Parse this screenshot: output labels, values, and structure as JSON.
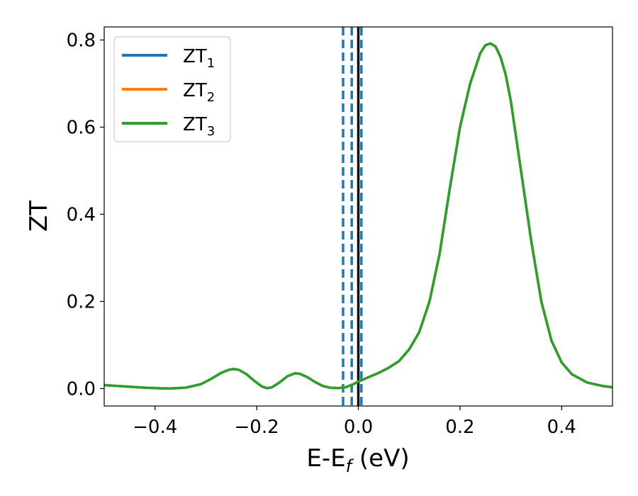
{
  "chart_data": {
    "type": "line",
    "xlabel_main": "E-E",
    "xlabel_sub": "f",
    "xlabel_unit": " (eV)",
    "ylabel": "ZT",
    "xlim": [
      -0.5,
      0.5
    ],
    "ylim": [
      -0.04,
      0.83
    ],
    "x_ticks": [
      -0.4,
      -0.2,
      0.0,
      0.2,
      0.4
    ],
    "x_tick_labels": [
      "−0.4",
      "−0.2",
      "0.0",
      "0.2",
      "0.4"
    ],
    "y_ticks": [
      0.0,
      0.2,
      0.4,
      0.6,
      0.8
    ],
    "y_tick_labels": [
      "0.0",
      "0.2",
      "0.4",
      "0.6",
      "0.8"
    ],
    "grid": false,
    "legend_placement": "top-left",
    "vlines": [
      {
        "x": -0.03,
        "style": "dashed",
        "color": "#1f77b4"
      },
      {
        "x": -0.013,
        "style": "dashed",
        "color": "#1f77b4"
      },
      {
        "x": 0.006,
        "style": "dashed",
        "color": "#1f77b4"
      },
      {
        "x": 0.0,
        "style": "solid",
        "color": "#000000"
      }
    ],
    "series": [
      {
        "name": "ZT",
        "sub": "1",
        "color": "#1f77b4",
        "x": [
          -0.5,
          -0.46,
          -0.42,
          -0.39,
          -0.37,
          -0.34,
          -0.31,
          -0.29,
          -0.27,
          -0.255,
          -0.245,
          -0.235,
          -0.22,
          -0.205,
          -0.19,
          -0.18,
          -0.17,
          -0.155,
          -0.14,
          -0.125,
          -0.115,
          -0.1,
          -0.085,
          -0.07,
          -0.055,
          -0.04,
          -0.025,
          -0.01,
          0.0,
          0.02,
          0.04,
          0.06,
          0.08,
          0.1,
          0.12,
          0.14,
          0.16,
          0.18,
          0.2,
          0.22,
          0.24,
          0.25,
          0.26,
          0.27,
          0.28,
          0.29,
          0.3,
          0.32,
          0.34,
          0.36,
          0.38,
          0.4,
          0.42,
          0.45,
          0.48,
          0.5
        ],
        "y": [
          0.008,
          0.005,
          0.002,
          0.0006,
          0.0003,
          0.002,
          0.01,
          0.022,
          0.036,
          0.043,
          0.045,
          0.043,
          0.033,
          0.018,
          0.005,
          0.0008,
          0.003,
          0.014,
          0.028,
          0.035,
          0.034,
          0.026,
          0.015,
          0.006,
          0.0018,
          0.001,
          0.003,
          0.01,
          0.016,
          0.026,
          0.036,
          0.048,
          0.063,
          0.09,
          0.13,
          0.2,
          0.31,
          0.46,
          0.6,
          0.7,
          0.77,
          0.788,
          0.792,
          0.785,
          0.76,
          0.72,
          0.66,
          0.5,
          0.34,
          0.2,
          0.11,
          0.06,
          0.033,
          0.014,
          0.006,
          0.003
        ]
      },
      {
        "name": "ZT",
        "sub": "2",
        "color": "#ff7f0e",
        "x": [
          -0.5,
          -0.46,
          -0.42,
          -0.39,
          -0.37,
          -0.34,
          -0.31,
          -0.29,
          -0.27,
          -0.255,
          -0.245,
          -0.235,
          -0.22,
          -0.205,
          -0.19,
          -0.18,
          -0.17,
          -0.155,
          -0.14,
          -0.125,
          -0.115,
          -0.1,
          -0.085,
          -0.07,
          -0.055,
          -0.04,
          -0.025,
          -0.01,
          0.0,
          0.02,
          0.04,
          0.06,
          0.08,
          0.1,
          0.12,
          0.14,
          0.16,
          0.18,
          0.2,
          0.22,
          0.24,
          0.25,
          0.26,
          0.27,
          0.28,
          0.29,
          0.3,
          0.32,
          0.34,
          0.36,
          0.38,
          0.4,
          0.42,
          0.45,
          0.48,
          0.5
        ],
        "y": [
          0.008,
          0.005,
          0.002,
          0.0006,
          0.0003,
          0.002,
          0.01,
          0.022,
          0.036,
          0.043,
          0.045,
          0.043,
          0.033,
          0.018,
          0.005,
          0.0008,
          0.003,
          0.014,
          0.028,
          0.035,
          0.034,
          0.026,
          0.015,
          0.006,
          0.0018,
          0.001,
          0.003,
          0.01,
          0.016,
          0.026,
          0.036,
          0.048,
          0.063,
          0.09,
          0.13,
          0.2,
          0.31,
          0.46,
          0.6,
          0.7,
          0.77,
          0.788,
          0.792,
          0.785,
          0.76,
          0.72,
          0.66,
          0.5,
          0.34,
          0.2,
          0.11,
          0.06,
          0.033,
          0.014,
          0.006,
          0.003
        ]
      },
      {
        "name": "ZT",
        "sub": "3",
        "color": "#2ca02c",
        "x": [
          -0.5,
          -0.46,
          -0.42,
          -0.39,
          -0.37,
          -0.34,
          -0.31,
          -0.29,
          -0.27,
          -0.255,
          -0.245,
          -0.235,
          -0.22,
          -0.205,
          -0.19,
          -0.18,
          -0.17,
          -0.155,
          -0.14,
          -0.125,
          -0.115,
          -0.1,
          -0.085,
          -0.07,
          -0.055,
          -0.04,
          -0.025,
          -0.01,
          0.0,
          0.02,
          0.04,
          0.06,
          0.08,
          0.1,
          0.12,
          0.14,
          0.16,
          0.18,
          0.2,
          0.22,
          0.24,
          0.25,
          0.26,
          0.27,
          0.28,
          0.29,
          0.3,
          0.32,
          0.34,
          0.36,
          0.38,
          0.4,
          0.42,
          0.45,
          0.48,
          0.5
        ],
        "y": [
          0.008,
          0.005,
          0.002,
          0.0006,
          0.0003,
          0.002,
          0.01,
          0.022,
          0.036,
          0.043,
          0.045,
          0.043,
          0.033,
          0.018,
          0.005,
          0.0008,
          0.003,
          0.014,
          0.028,
          0.035,
          0.034,
          0.026,
          0.015,
          0.006,
          0.0018,
          0.001,
          0.003,
          0.01,
          0.016,
          0.026,
          0.036,
          0.048,
          0.063,
          0.09,
          0.13,
          0.2,
          0.31,
          0.46,
          0.6,
          0.7,
          0.77,
          0.788,
          0.792,
          0.785,
          0.76,
          0.72,
          0.66,
          0.5,
          0.34,
          0.2,
          0.11,
          0.06,
          0.033,
          0.014,
          0.006,
          0.003
        ]
      }
    ]
  }
}
